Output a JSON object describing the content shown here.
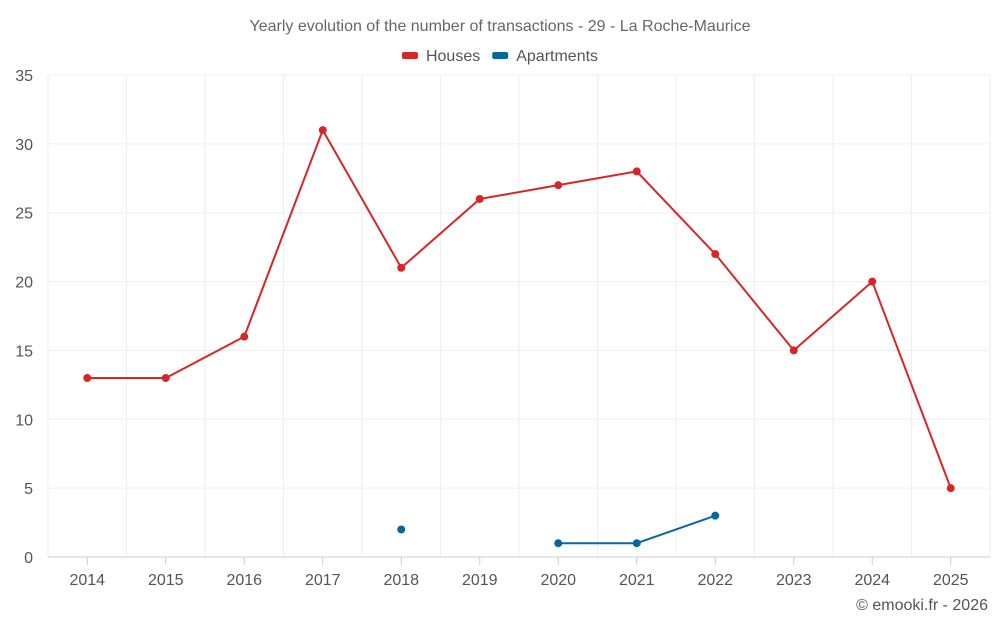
{
  "chart_data": {
    "type": "line",
    "title": "Yearly evolution of the number of transactions - 29 - La Roche-Maurice",
    "xlabel": "",
    "ylabel": "",
    "categories": [
      "2014",
      "2015",
      "2016",
      "2017",
      "2018",
      "2019",
      "2020",
      "2021",
      "2022",
      "2023",
      "2024",
      "2025"
    ],
    "ylim": [
      0,
      35
    ],
    "yticks": [
      0,
      5,
      10,
      15,
      20,
      25,
      30,
      35
    ],
    "grid": true,
    "legend_position": "top-center",
    "series": [
      {
        "name": "Houses",
        "color": "#d62728",
        "values": [
          13,
          13,
          16,
          31,
          21,
          26,
          27,
          28,
          22,
          15,
          20,
          5
        ]
      },
      {
        "name": "Apartments",
        "color": "#08679c",
        "values": [
          null,
          null,
          null,
          null,
          2,
          null,
          1,
          1,
          3,
          null,
          null,
          null
        ]
      }
    ]
  },
  "credit": "© emooki.fr - 2026"
}
